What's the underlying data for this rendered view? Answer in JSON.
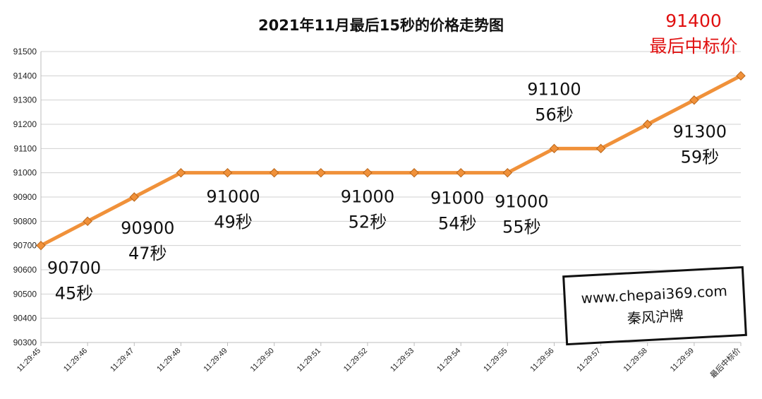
{
  "chart_data": {
    "type": "line",
    "title": "2021年11月最后15秒的价格走势图",
    "categories": [
      "11:29:45",
      "11:29:46",
      "11:29:47",
      "11:29:48",
      "11:29:49",
      "11:29:50",
      "11:29:51",
      "11:29:52",
      "11:29:53",
      "11:29:54",
      "11:29:55",
      "11:29:56",
      "11:29:57",
      "11:29:58",
      "11:29:59",
      "最后中标价"
    ],
    "values": [
      90700,
      90800,
      90900,
      91000,
      91000,
      91000,
      91000,
      91000,
      91000,
      91000,
      91000,
      91100,
      91100,
      91200,
      91300,
      91400
    ],
    "ylim": [
      90300,
      91500
    ],
    "yticks": [
      "91500",
      "91400",
      "91300",
      "91200",
      "91100",
      "91000",
      "90900",
      "90800",
      "90700",
      "90600",
      "90500",
      "90400",
      "90300"
    ],
    "grid": true,
    "line_color": "#f0913a",
    "marker_color": "#f0913a",
    "annotations": [
      {
        "index": 0,
        "price": "90700",
        "time": "45秒"
      },
      {
        "index": 2,
        "price": "90900",
        "time": "47秒"
      },
      {
        "index": 4,
        "price": "91000",
        "time": "49秒"
      },
      {
        "index": 7,
        "price": "91000",
        "time": "52秒"
      },
      {
        "index": 9,
        "price": "91000",
        "time": "54秒"
      },
      {
        "index": 10,
        "price": "91000",
        "time": "55秒"
      },
      {
        "index": 11,
        "price": "91100",
        "time": "56秒"
      },
      {
        "index": 14,
        "price": "91300",
        "time": "59秒"
      }
    ],
    "final_price": {
      "price": "91400",
      "label": "最后中标价",
      "color": "#e01010"
    }
  },
  "watermark": {
    "url": "www.chepai369.com",
    "name": "秦风沪牌"
  }
}
